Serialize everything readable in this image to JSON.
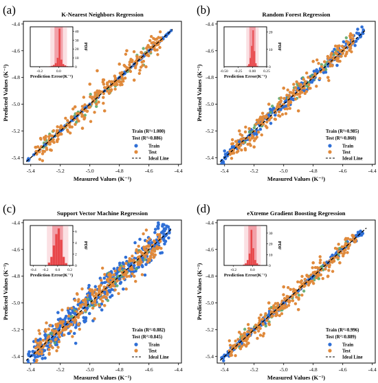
{
  "panels": [
    {
      "letter": "(a)",
      "title": "K-Nearest Neighbors Regression",
      "train_metric": "Train (R²=1.000)",
      "test_metric": "Test (R²=0.886)"
    },
    {
      "letter": "(b)",
      "title": "Random Forest Regression",
      "train_metric": "Train (R²=0.985)",
      "test_metric": "Test (R²=0.860)"
    },
    {
      "letter": "(c)",
      "title": "Support Vector Machine Regression",
      "train_metric": "Train (R²=0.882)",
      "test_metric": "Test (R²=0.845)"
    },
    {
      "letter": "(d)",
      "title": "eXtreme Gradient Boosting Regression",
      "train_metric": "Train (R²=0.996)",
      "test_metric": "Test (R²=0.889)"
    }
  ],
  "legend": {
    "train": "Train",
    "test": "Test",
    "ideal": "Ideal Line"
  },
  "colors": {
    "train": "#2f6fd6",
    "test": "#e08a3c",
    "overlap": "#5fa86a",
    "ideal_line": "#000000",
    "hist_bar": "#e8474a",
    "hist_band_inner": "#f2a0a8",
    "hist_band_outer": "#fbe0e3"
  },
  "chart_data": [
    {
      "type": "scatter",
      "title": "K-Nearest Neighbors Regression",
      "xlabel": "Measured  Values (K⁻¹)",
      "ylabel": "Predicted  Values (K⁻¹)",
      "xlim": [
        -5.45,
        -4.38
      ],
      "ylim": [
        -5.45,
        -4.38
      ],
      "xticks": [
        "-5.4",
        "-5.2",
        "-5.0",
        "-4.8",
        "-4.6",
        "-4.4"
      ],
      "yticks": [
        "-5.4",
        "-5.2",
        "-5.0",
        "-4.8",
        "-4.6",
        "-4.4"
      ],
      "grid": false,
      "legend_position": "bottom-right",
      "series": [
        {
          "name": "Train",
          "points": [
            [
              -5.42,
              -5.42
            ],
            [
              -5.3,
              -5.3
            ],
            [
              -5.2,
              -5.2
            ],
            [
              -5.1,
              -5.1
            ],
            [
              -5.0,
              -5.0
            ],
            [
              -4.9,
              -4.9
            ],
            [
              -4.8,
              -4.8
            ],
            [
              -4.7,
              -4.7
            ],
            [
              -4.6,
              -4.6
            ],
            [
              -4.45,
              -4.45
            ]
          ]
        },
        {
          "name": "Test",
          "points": [
            [
              -5.3,
              -5.25
            ],
            [
              -5.1,
              -5.02
            ],
            [
              -5.0,
              -4.85
            ],
            [
              -4.9,
              -5.05
            ],
            [
              -4.8,
              -4.7
            ],
            [
              -4.7,
              -4.82
            ],
            [
              -4.62,
              -4.72
            ],
            [
              -4.95,
              -4.75
            ],
            [
              -5.05,
              -5.18
            ],
            [
              -4.75,
              -4.6
            ]
          ]
        },
        {
          "name": "Ideal Line",
          "x": [
            -5.43,
            -4.44
          ],
          "y": [
            -5.43,
            -4.44
          ]
        }
      ],
      "inset": {
        "type": "histogram",
        "xlabel": "Prediction Error(K⁻¹)",
        "ylabel": "PDF",
        "xlim": [
          -0.3,
          0.15
        ],
        "xticks": [
          "-0.2",
          "0.0"
        ],
        "yticks": [
          "0",
          "10",
          "20",
          "30",
          "40"
        ],
        "ylim": [
          0,
          45
        ],
        "bins": [
          -0.12,
          -0.1,
          -0.08,
          -0.06,
          -0.04,
          -0.02,
          0.0,
          0.02,
          0.04,
          0.06,
          0.08,
          0.1
        ],
        "counts": [
          0.3,
          0.5,
          1,
          2,
          4,
          10,
          43,
          8,
          3,
          1.5,
          0.6,
          0.3
        ]
      }
    },
    {
      "type": "scatter",
      "title": "Random Forest Regression",
      "xlabel": "Measured  Values (K⁻¹)",
      "ylabel": "Predicted  Values (K⁻¹)",
      "xlim": [
        -5.45,
        -4.38
      ],
      "ylim": [
        -5.45,
        -4.38
      ],
      "xticks": [
        "-5.4",
        "-5.2",
        "-5.0",
        "-4.8",
        "-4.6",
        "-4.4"
      ],
      "yticks": [
        "-5.4",
        "-5.2",
        "-5.0",
        "-4.8",
        "-4.6",
        "-4.4"
      ],
      "grid": false,
      "legend_position": "bottom-right",
      "series": [
        {
          "name": "Train",
          "points": [
            [
              -5.4,
              -5.35
            ],
            [
              -5.3,
              -5.28
            ],
            [
              -5.2,
              -5.22
            ],
            [
              -5.1,
              -5.08
            ],
            [
              -5.0,
              -5.02
            ],
            [
              -4.9,
              -4.88
            ],
            [
              -4.8,
              -4.82
            ],
            [
              -4.7,
              -4.7
            ]
          ]
        },
        {
          "name": "Test",
          "points": [
            [
              -5.3,
              -5.2
            ],
            [
              -5.1,
              -5.0
            ],
            [
              -5.0,
              -4.88
            ],
            [
              -4.9,
              -5.05
            ],
            [
              -4.8,
              -4.68
            ],
            [
              -4.7,
              -4.8
            ],
            [
              -4.6,
              -4.62
            ],
            [
              -5.2,
              -5.32
            ]
          ]
        },
        {
          "name": "Ideal Line",
          "x": [
            -5.43,
            -4.44
          ],
          "y": [
            -5.43,
            -4.44
          ]
        }
      ],
      "inset": {
        "type": "histogram",
        "xlabel": "Prediction Error(K⁻¹)",
        "ylabel": "PDF",
        "xlim": [
          -0.5,
          0.25
        ],
        "xticks": [
          "-0.50",
          "-0.25",
          "0.00",
          "0.25"
        ],
        "yticks": [
          "0",
          "10",
          "20"
        ],
        "ylim": [
          0,
          23
        ],
        "bins": [
          -0.1,
          -0.075,
          -0.05,
          -0.025,
          0.0,
          0.025,
          0.05,
          0.075
        ],
        "counts": [
          0.5,
          1.5,
          5,
          12,
          21,
          9,
          2,
          0.5
        ]
      }
    },
    {
      "type": "scatter",
      "title": "Support Vector Machine Regression",
      "xlabel": "Measured  Values (K⁻¹)",
      "ylabel": "Predicted  Values (K⁻¹)",
      "xlim": [
        -5.45,
        -4.38
      ],
      "ylim": [
        -5.45,
        -4.38
      ],
      "xticks": [
        "-5.4",
        "-5.2",
        "-5.0",
        "-4.8",
        "-4.6",
        "-4.4"
      ],
      "yticks": [
        "-5.4",
        "-5.2",
        "-5.0",
        "-4.8",
        "-4.6",
        "-4.4"
      ],
      "grid": false,
      "legend_position": "bottom-right",
      "series": [
        {
          "name": "Train",
          "points": [
            [
              -5.35,
              -5.28
            ],
            [
              -5.2,
              -5.12
            ],
            [
              -5.1,
              -5.08
            ],
            [
              -5.0,
              -4.95
            ],
            [
              -4.9,
              -4.92
            ],
            [
              -4.8,
              -4.82
            ],
            [
              -4.7,
              -4.72
            ],
            [
              -4.6,
              -4.55
            ]
          ]
        },
        {
          "name": "Test",
          "points": [
            [
              -5.3,
              -5.2
            ],
            [
              -5.1,
              -4.98
            ],
            [
              -5.0,
              -4.9
            ],
            [
              -4.9,
              -5.02
            ],
            [
              -4.8,
              -4.75
            ],
            [
              -4.7,
              -4.8
            ],
            [
              -5.2,
              -5.15
            ]
          ]
        },
        {
          "name": "Ideal Line",
          "x": [
            -5.43,
            -4.44
          ],
          "y": [
            -5.43,
            -4.44
          ]
        }
      ],
      "inset": {
        "type": "histogram",
        "xlabel": "Prediction Error(K⁻¹)",
        "ylabel": "PDF",
        "xlim": [
          -0.45,
          0.25
        ],
        "xticks": [
          "-0.4",
          "-0.2",
          "0.0",
          "0.2"
        ],
        "yticks": [
          "0",
          "2",
          "4",
          "6"
        ],
        "ylim": [
          0,
          7
        ],
        "bins": [
          -0.16,
          -0.12,
          -0.08,
          -0.04,
          0.0,
          0.04,
          0.08,
          0.12
        ],
        "counts": [
          0.5,
          1.5,
          3.5,
          5.5,
          6.5,
          4.5,
          1.5,
          0.4
        ]
      }
    },
    {
      "type": "scatter",
      "title": "eXtreme Gradient Boosting Regression",
      "xlabel": "Measured  Values (K⁻¹)",
      "ylabel": "Predicted  Values (K⁻¹)",
      "xlim": [
        -5.45,
        -4.38
      ],
      "ylim": [
        -5.45,
        -4.38
      ],
      "xticks": [
        "-5.4",
        "-5.2",
        "-5.0",
        "-4.8",
        "-4.6",
        "-4.4"
      ],
      "yticks": [
        "-5.4",
        "-5.2",
        "-5.0",
        "-4.8",
        "-4.6",
        "-4.4"
      ],
      "grid": false,
      "legend_position": "bottom-right",
      "series": [
        {
          "name": "Train",
          "points": [
            [
              -5.42,
              -5.41
            ],
            [
              -5.3,
              -5.29
            ],
            [
              -5.2,
              -5.2
            ],
            [
              -5.1,
              -5.1
            ],
            [
              -5.0,
              -5.0
            ],
            [
              -4.9,
              -4.91
            ],
            [
              -4.8,
              -4.8
            ],
            [
              -4.7,
              -4.7
            ],
            [
              -4.5,
              -4.5
            ]
          ]
        },
        {
          "name": "Test",
          "points": [
            [
              -5.3,
              -5.22
            ],
            [
              -5.1,
              -5.0
            ],
            [
              -5.0,
              -4.88
            ],
            [
              -4.9,
              -5.05
            ],
            [
              -4.8,
              -4.7
            ],
            [
              -4.7,
              -4.8
            ],
            [
              -4.62,
              -4.7
            ]
          ]
        },
        {
          "name": "Ideal Line",
          "x": [
            -5.43,
            -4.44
          ],
          "y": [
            -5.43,
            -4.44
          ]
        }
      ],
      "inset": {
        "type": "histogram",
        "xlabel": "Prediction Error(K⁻¹)",
        "ylabel": "PDF",
        "xlim": [
          -0.3,
          0.15
        ],
        "xticks": [
          "-0.2",
          "0.0"
        ],
        "yticks": [
          "0",
          "10",
          "20",
          "30"
        ],
        "ylim": [
          0,
          37
        ],
        "bins": [
          -0.12,
          -0.1,
          -0.08,
          -0.06,
          -0.04,
          -0.02,
          0.0,
          0.02,
          0.04,
          0.06,
          0.08
        ],
        "counts": [
          0.3,
          0.8,
          2,
          5,
          11,
          33,
          16,
          5,
          2,
          0.6,
          0.2
        ]
      }
    }
  ]
}
